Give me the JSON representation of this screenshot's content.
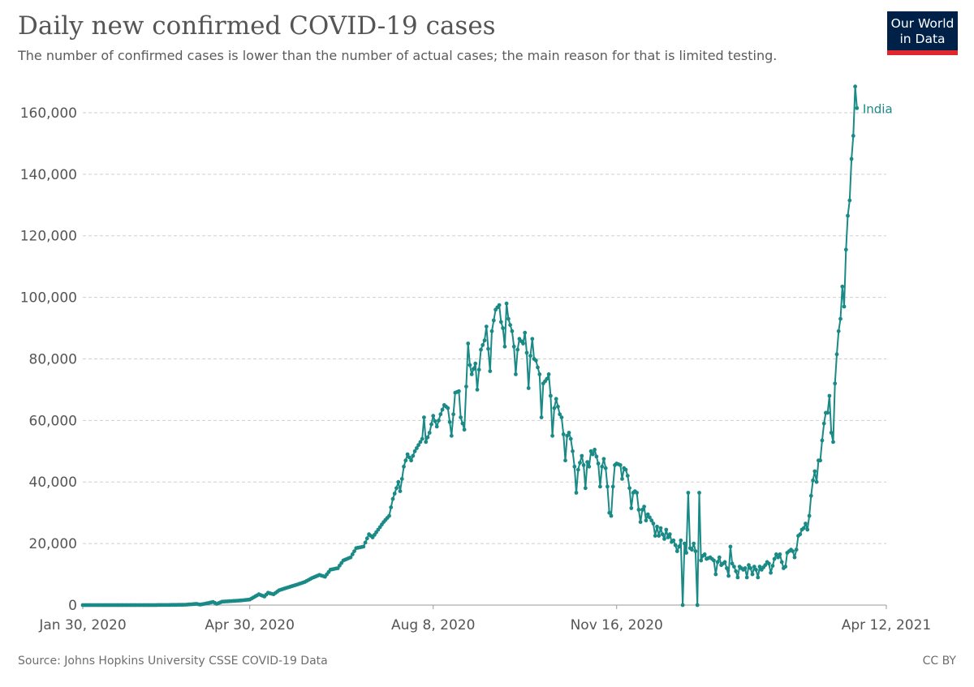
{
  "header": {
    "title": "Daily new confirmed COVID-19 cases",
    "subtitle": "The number of confirmed cases is lower than the number of actual cases; the main reason for that is limited testing."
  },
  "logo": {
    "line1": "Our World",
    "line2": "in Data",
    "bg_color": "#002147",
    "accent_color": "#e0262f"
  },
  "footer": {
    "source": "Source: Johns Hopkins University CSSE COVID-19 Data",
    "license": "CC BY"
  },
  "chart_data": {
    "type": "line",
    "title": "Daily new confirmed COVID-19 cases",
    "xlabel": "",
    "ylabel": "",
    "ylim": [
      0,
      170000
    ],
    "yticks": [
      0,
      20000,
      40000,
      60000,
      80000,
      100000,
      120000,
      140000,
      160000
    ],
    "ytick_labels": [
      "0",
      "20,000",
      "40,000",
      "60,000",
      "80,000",
      "100,000",
      "120,000",
      "140,000",
      "160,000"
    ],
    "xlim": [
      "2020-01-30",
      "2021-04-12"
    ],
    "xticks": [
      "2020-01-30",
      "2020-04-30",
      "2020-08-08",
      "2020-11-16",
      "2021-04-12"
    ],
    "xtick_labels": [
      "Jan 30, 2020",
      "Apr 30, 2020",
      "Aug 8, 2020",
      "Nov 16, 2020",
      "Apr 12, 2021"
    ],
    "grid": "horizontal dashed",
    "series": [
      {
        "name": "India",
        "color": "#1a8a86",
        "points": [
          [
            "2020-01-30",
            1
          ],
          [
            "2020-02-15",
            0
          ],
          [
            "2020-03-01",
            0
          ],
          [
            "2020-03-15",
            20
          ],
          [
            "2020-03-26",
            100
          ],
          [
            "2020-04-01",
            400
          ],
          [
            "2020-04-03",
            150
          ],
          [
            "2020-04-07",
            600
          ],
          [
            "2020-04-10",
            1000
          ],
          [
            "2020-04-12",
            400
          ],
          [
            "2020-04-15",
            1100
          ],
          [
            "2020-04-20",
            1300
          ],
          [
            "2020-04-25",
            1500
          ],
          [
            "2020-04-30",
            1800
          ],
          [
            "2020-05-05",
            3500
          ],
          [
            "2020-05-08",
            2800
          ],
          [
            "2020-05-10",
            4000
          ],
          [
            "2020-05-13",
            3500
          ],
          [
            "2020-05-16",
            4800
          ],
          [
            "2020-05-20",
            5600
          ],
          [
            "2020-05-25",
            6500
          ],
          [
            "2020-05-30",
            7500
          ],
          [
            "2020-06-03",
            8800
          ],
          [
            "2020-06-07",
            9800
          ],
          [
            "2020-06-10",
            9200
          ],
          [
            "2020-06-13",
            11500
          ],
          [
            "2020-06-17",
            12000
          ],
          [
            "2020-06-20",
            14500
          ],
          [
            "2020-06-24",
            15500
          ],
          [
            "2020-06-27",
            18500
          ],
          [
            "2020-07-01",
            19000
          ],
          [
            "2020-07-04",
            23000
          ],
          [
            "2020-07-06",
            22000
          ],
          [
            "2020-07-09",
            24500
          ],
          [
            "2020-07-12",
            27000
          ],
          [
            "2020-07-15",
            29000
          ],
          [
            "2020-07-17",
            34500
          ],
          [
            "2020-07-19",
            38000
          ],
          [
            "2020-07-20",
            40000
          ],
          [
            "2020-07-21",
            37000
          ],
          [
            "2020-07-23",
            45000
          ],
          [
            "2020-07-25",
            49000
          ],
          [
            "2020-07-27",
            47000
          ],
          [
            "2020-07-29",
            50000
          ],
          [
            "2020-07-31",
            52000
          ],
          [
            "2020-08-02",
            54000
          ],
          [
            "2020-08-03",
            61000
          ],
          [
            "2020-08-04",
            53000
          ],
          [
            "2020-08-06",
            56000
          ],
          [
            "2020-08-08",
            61500
          ],
          [
            "2020-08-10",
            58000
          ],
          [
            "2020-08-12",
            62000
          ],
          [
            "2020-08-14",
            65000
          ],
          [
            "2020-08-16",
            64000
          ],
          [
            "2020-08-18",
            55000
          ],
          [
            "2020-08-20",
            69000
          ],
          [
            "2020-08-22",
            69500
          ],
          [
            "2020-08-23",
            61000
          ],
          [
            "2020-08-25",
            57000
          ],
          [
            "2020-08-27",
            85000
          ],
          [
            "2020-08-28",
            78000
          ],
          [
            "2020-08-29",
            75000
          ],
          [
            "2020-08-31",
            78500
          ],
          [
            "2020-09-01",
            70000
          ],
          [
            "2020-09-03",
            83000
          ],
          [
            "2020-09-05",
            86000
          ],
          [
            "2020-09-06",
            90500
          ],
          [
            "2020-09-08",
            76000
          ],
          [
            "2020-09-09",
            89000
          ],
          [
            "2020-09-11",
            96000
          ],
          [
            "2020-09-13",
            97500
          ],
          [
            "2020-09-14",
            92000
          ],
          [
            "2020-09-15",
            90000
          ],
          [
            "2020-09-16",
            84000
          ],
          [
            "2020-09-17",
            98000
          ],
          [
            "2020-09-18",
            93000
          ],
          [
            "2020-09-20",
            89000
          ],
          [
            "2020-09-21",
            84000
          ],
          [
            "2020-09-22",
            75000
          ],
          [
            "2020-09-23",
            83000
          ],
          [
            "2020-09-24",
            86500
          ],
          [
            "2020-09-26",
            85000
          ],
          [
            "2020-09-27",
            88500
          ],
          [
            "2020-09-28",
            82000
          ],
          [
            "2020-09-29",
            70500
          ],
          [
            "2020-09-30",
            81000
          ],
          [
            "2020-10-01",
            86500
          ],
          [
            "2020-10-02",
            80000
          ],
          [
            "2020-10-03",
            79500
          ],
          [
            "2020-10-05",
            75000
          ],
          [
            "2020-10-06",
            61000
          ],
          [
            "2020-10-07",
            72000
          ],
          [
            "2020-10-09",
            73500
          ],
          [
            "2020-10-10",
            75000
          ],
          [
            "2020-10-11",
            68000
          ],
          [
            "2020-10-12",
            55000
          ],
          [
            "2020-10-13",
            64000
          ],
          [
            "2020-10-14",
            67000
          ],
          [
            "2020-10-16",
            62000
          ],
          [
            "2020-10-17",
            61000
          ],
          [
            "2020-10-18",
            55500
          ],
          [
            "2020-10-19",
            47000
          ],
          [
            "2020-10-20",
            55000
          ],
          [
            "2020-10-21",
            56000
          ],
          [
            "2020-10-22",
            54000
          ],
          [
            "2020-10-23",
            50000
          ],
          [
            "2020-10-24",
            45000
          ],
          [
            "2020-10-25",
            36500
          ],
          [
            "2020-10-26",
            44000
          ],
          [
            "2020-10-28",
            48500
          ],
          [
            "2020-10-29",
            45500
          ],
          [
            "2020-10-30",
            38000
          ],
          [
            "2020-10-31",
            46500
          ],
          [
            "2020-11-01",
            45000
          ],
          [
            "2020-11-02",
            50000
          ],
          [
            "2020-11-03",
            49000
          ],
          [
            "2020-11-04",
            50500
          ],
          [
            "2020-11-06",
            46000
          ],
          [
            "2020-11-07",
            38500
          ],
          [
            "2020-11-08",
            45000
          ],
          [
            "2020-11-09",
            47500
          ],
          [
            "2020-11-10",
            44500
          ],
          [
            "2020-11-11",
            38500
          ],
          [
            "2020-11-12",
            30000
          ],
          [
            "2020-11-13",
            29000
          ],
          [
            "2020-11-14",
            38500
          ],
          [
            "2020-11-15",
            45500
          ],
          [
            "2020-11-16",
            46000
          ],
          [
            "2020-11-18",
            45500
          ],
          [
            "2020-11-19",
            41000
          ],
          [
            "2020-11-20",
            44500
          ],
          [
            "2020-11-21",
            44000
          ],
          [
            "2020-11-22",
            42000
          ],
          [
            "2020-11-23",
            38000
          ],
          [
            "2020-11-24",
            31500
          ],
          [
            "2020-11-25",
            36500
          ],
          [
            "2020-11-26",
            37000
          ],
          [
            "2020-11-27",
            36500
          ],
          [
            "2020-11-28",
            31000
          ],
          [
            "2020-11-29",
            27000
          ],
          [
            "2020-11-30",
            31000
          ],
          [
            "2020-12-01",
            32000
          ],
          [
            "2020-12-02",
            27500
          ],
          [
            "2020-12-03",
            29500
          ],
          [
            "2020-12-04",
            28500
          ],
          [
            "2020-12-06",
            26500
          ],
          [
            "2020-12-07",
            22500
          ],
          [
            "2020-12-08",
            25500
          ],
          [
            "2020-12-09",
            22500
          ],
          [
            "2020-12-10",
            25000
          ],
          [
            "2020-12-11",
            23000
          ],
          [
            "2020-12-12",
            21500
          ],
          [
            "2020-12-13",
            24500
          ],
          [
            "2020-12-14",
            22000
          ],
          [
            "2020-12-15",
            23000
          ],
          [
            "2020-12-16",
            20500
          ],
          [
            "2020-12-17",
            21000
          ],
          [
            "2020-12-18",
            19500
          ],
          [
            "2020-12-19",
            17500
          ],
          [
            "2020-12-20",
            19000
          ],
          [
            "2020-12-21",
            21000
          ],
          [
            "2020-12-22",
            0
          ],
          [
            "2020-12-23",
            20000
          ],
          [
            "2020-12-24",
            17000
          ],
          [
            "2020-12-25",
            36500
          ],
          [
            "2020-12-26",
            18500
          ],
          [
            "2020-12-27",
            18000
          ],
          [
            "2020-12-28",
            20000
          ],
          [
            "2020-12-29",
            17500
          ],
          [
            "2020-12-30",
            0
          ],
          [
            "2020-12-31",
            36500
          ],
          [
            "2021-01-01",
            14500
          ],
          [
            "2021-01-02",
            16000
          ],
          [
            "2021-01-03",
            16500
          ],
          [
            "2021-01-04",
            15000
          ],
          [
            "2021-01-06",
            15500
          ],
          [
            "2021-01-08",
            14500
          ],
          [
            "2021-01-09",
            10000
          ],
          [
            "2021-01-10",
            14000
          ],
          [
            "2021-01-11",
            15500
          ],
          [
            "2021-01-12",
            13000
          ],
          [
            "2021-01-14",
            14000
          ],
          [
            "2021-01-15",
            12000
          ],
          [
            "2021-01-16",
            9500
          ],
          [
            "2021-01-17",
            19000
          ],
          [
            "2021-01-18",
            13500
          ],
          [
            "2021-01-19",
            12500
          ],
          [
            "2021-01-20",
            11000
          ],
          [
            "2021-01-21",
            9000
          ],
          [
            "2021-01-22",
            12500
          ],
          [
            "2021-01-23",
            12000
          ],
          [
            "2021-01-24",
            11500
          ],
          [
            "2021-01-25",
            12000
          ],
          [
            "2021-01-26",
            9000
          ],
          [
            "2021-01-27",
            13000
          ],
          [
            "2021-01-28",
            12000
          ],
          [
            "2021-01-29",
            10000
          ],
          [
            "2021-01-30",
            12500
          ],
          [
            "2021-01-31",
            11500
          ],
          [
            "2021-02-01",
            9000
          ],
          [
            "2021-02-02",
            12500
          ],
          [
            "2021-02-03",
            11500
          ],
          [
            "2021-02-05",
            13000
          ],
          [
            "2021-02-06",
            14000
          ],
          [
            "2021-02-07",
            13500
          ],
          [
            "2021-02-08",
            10500
          ],
          [
            "2021-02-10",
            15000
          ],
          [
            "2021-02-11",
            16500
          ],
          [
            "2021-02-12",
            15500
          ],
          [
            "2021-02-13",
            16500
          ],
          [
            "2021-02-14",
            14000
          ],
          [
            "2021-02-15",
            12000
          ],
          [
            "2021-02-16",
            12500
          ],
          [
            "2021-02-17",
            17000
          ],
          [
            "2021-02-18",
            17500
          ],
          [
            "2021-02-19",
            18000
          ],
          [
            "2021-02-20",
            17500
          ],
          [
            "2021-02-21",
            15500
          ],
          [
            "2021-02-22",
            18000
          ],
          [
            "2021-02-23",
            22500
          ],
          [
            "2021-02-24",
            23000
          ],
          [
            "2021-02-25",
            24500
          ],
          [
            "2021-02-26",
            25000
          ],
          [
            "2021-02-27",
            26500
          ],
          [
            "2021-02-28",
            24500
          ],
          [
            "2021-03-01",
            29000
          ],
          [
            "2021-03-02",
            35500
          ],
          [
            "2021-03-03",
            40500
          ],
          [
            "2021-03-04",
            43500
          ],
          [
            "2021-03-05",
            40000
          ],
          [
            "2021-03-06",
            47000
          ],
          [
            "2021-03-07",
            47000
          ],
          [
            "2021-03-08",
            53500
          ],
          [
            "2021-03-09",
            59000
          ],
          [
            "2021-03-10",
            62500
          ],
          [
            "2021-03-11",
            62500
          ],
          [
            "2021-03-12",
            68000
          ],
          [
            "2021-03-13",
            56000
          ],
          [
            "2021-03-14",
            53000
          ],
          [
            "2021-03-15",
            72000
          ],
          [
            "2021-03-16",
            81500
          ],
          [
            "2021-03-17",
            89000
          ],
          [
            "2021-03-18",
            93000
          ],
          [
            "2021-03-19",
            103500
          ],
          [
            "2021-03-20",
            97000
          ],
          [
            "2021-03-21",
            115500
          ],
          [
            "2021-03-22",
            126500
          ],
          [
            "2021-03-23",
            131500
          ],
          [
            "2021-03-24",
            145000
          ],
          [
            "2021-03-25",
            152500
          ],
          [
            "2021-03-26",
            168500
          ],
          [
            "2021-03-27",
            161500
          ]
        ]
      }
    ]
  }
}
